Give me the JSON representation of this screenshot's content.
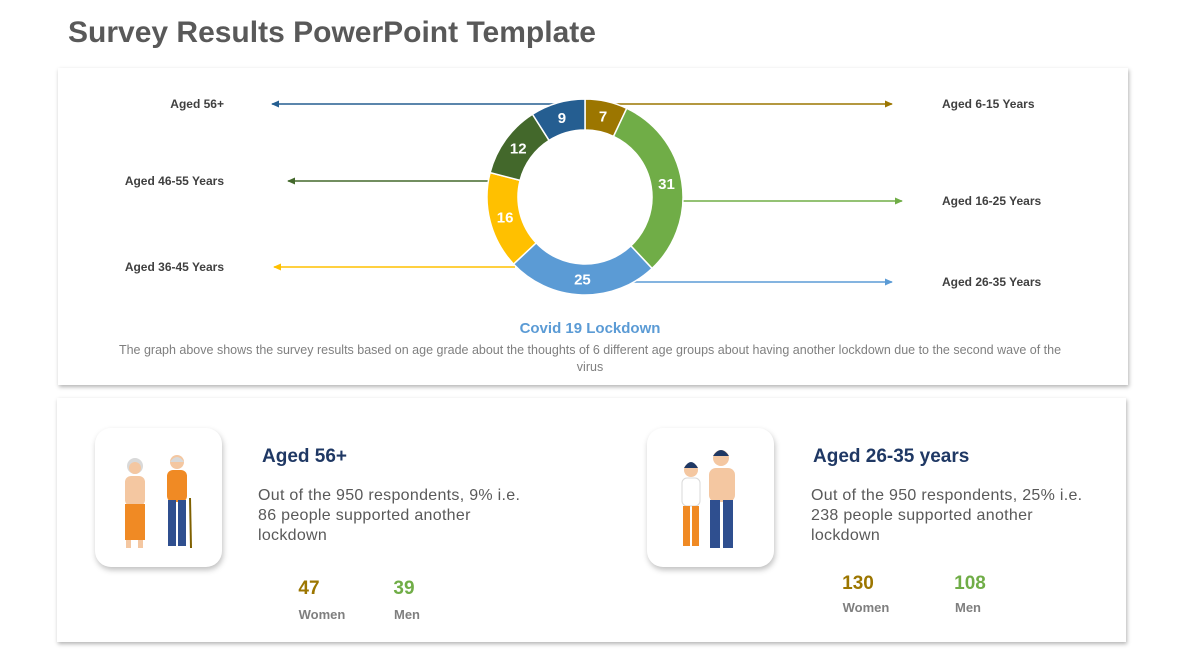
{
  "header": {
    "title": "Survey Results PowerPoint Template"
  },
  "chart_data": {
    "type": "donut",
    "title": "Covid 19 Lockdown",
    "description": "The graph above shows the survey results based on age grade about the thoughts of 6 different age groups about having another lockdown due to the second wave of the virus",
    "categories": [
      "Aged 6-15 Years",
      "Aged 16-25 Years",
      "Aged 26-35 Years",
      "Aged 36-45 Years",
      "Aged 46-55 Years",
      "Aged 56+"
    ],
    "values": [
      7,
      31,
      25,
      16,
      12,
      9
    ],
    "colors": [
      "#9c7600",
      "#70ad47",
      "#5b9bd5",
      "#ffc000",
      "#43682b",
      "#255e91"
    ]
  },
  "cards": [
    {
      "title": "Aged 56+",
      "text": "Out of the 950 respondents, 9% i.e. 86 people supported another lockdown",
      "stats": [
        {
          "value": 47,
          "label": "Women"
        },
        {
          "value": 39,
          "label": "Men"
        }
      ]
    },
    {
      "title": "Aged 26-35 years",
      "text": "Out of the 950 respondents, 25% i.e. 238 people supported another lockdown",
      "stats": [
        {
          "value": 130,
          "label": "Women"
        },
        {
          "value": 108,
          "label": "Men"
        }
      ]
    }
  ]
}
